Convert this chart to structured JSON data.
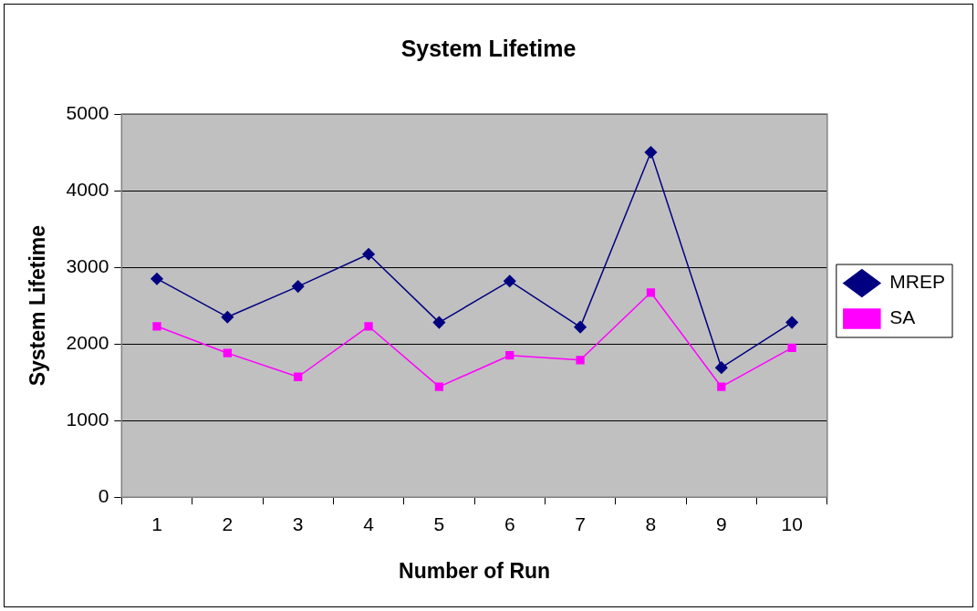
{
  "chart_data": {
    "type": "line",
    "title": "System Lifetime",
    "xlabel": "Number of Run",
    "ylabel": "System Lifetime",
    "categories": [
      "1",
      "2",
      "3",
      "4",
      "5",
      "6",
      "7",
      "8",
      "9",
      "10"
    ],
    "series": [
      {
        "name": "MREP",
        "color": "#000080",
        "marker": "diamond",
        "values": [
          2850,
          2350,
          2750,
          3170,
          2280,
          2820,
          2220,
          4500,
          1690,
          2280
        ]
      },
      {
        "name": "SA",
        "color": "#ff00ff",
        "marker": "square",
        "values": [
          2230,
          1880,
          1570,
          2230,
          1440,
          1850,
          1790,
          2670,
          1440,
          1950
        ]
      }
    ],
    "ylim": [
      0,
      5000
    ],
    "yticks": [
      0,
      1000,
      2000,
      3000,
      4000,
      5000
    ],
    "grid": "y",
    "legend": "right",
    "line_style": "solid"
  }
}
